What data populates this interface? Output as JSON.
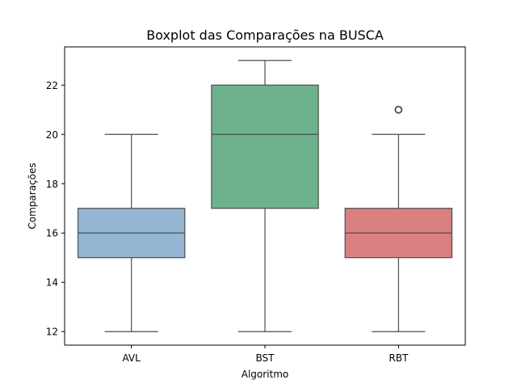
{
  "chart_data": {
    "type": "box",
    "title": "Boxplot das Comparações na BUSCA",
    "xlabel": "Algoritmo",
    "ylabel": "Comparações",
    "ylim": [
      11.45,
      23.55
    ],
    "yticks": [
      12,
      14,
      16,
      18,
      20,
      22
    ],
    "grid": false,
    "categories": [
      "AVL",
      "BST",
      "RBT"
    ],
    "boxes": [
      {
        "category": "AVL",
        "whisker_low": 12,
        "q1": 15,
        "median": 16,
        "q3": 17,
        "whisker_high": 20,
        "outliers": [],
        "color": "#94b6d2"
      },
      {
        "category": "BST",
        "whisker_low": 12,
        "q1": 17,
        "median": 20,
        "q3": 22,
        "whisker_high": 23,
        "outliers": [],
        "color": "#6db28c"
      },
      {
        "category": "RBT",
        "whisker_low": 12,
        "q1": 15,
        "median": 16,
        "q3": 17,
        "whisker_high": 20,
        "outliers": [
          21
        ],
        "color": "#da8080"
      }
    ],
    "line_color": "#4d4d4d"
  }
}
